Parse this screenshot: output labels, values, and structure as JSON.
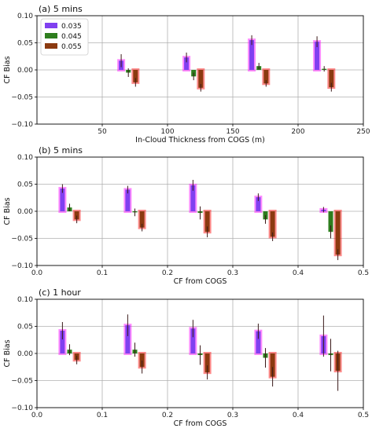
{
  "colors": {
    "low": "#8040f0",
    "mid": "#2e7d1e",
    "high": "#8b3a10",
    "fill_low": "#ff00ff",
    "fill_high": "#ff0000",
    "grid": "#b0b0b0"
  },
  "chart_data": [
    {
      "type": "bar",
      "title": "(a) 5 mins",
      "xlabel": "In-Cloud Thickness from COGS (m)",
      "ylabel": "CF Bias",
      "xlim": [
        0,
        250
      ],
      "ylim": [
        -0.1,
        0.1
      ],
      "xticks": [
        "50",
        "100",
        "150",
        "200",
        "250"
      ],
      "yticks": [
        "0.10",
        "0.05",
        "0.00",
        "−0.05",
        "−0.10"
      ],
      "grid": true,
      "legend": {
        "position": "top-left",
        "entries": [
          "0.035",
          "0.045",
          "0.055"
        ]
      },
      "x": [
        70,
        120,
        170,
        220
      ],
      "series": [
        {
          "name": "0.035",
          "values": [
            0.017,
            0.023,
            0.055,
            0.052
          ],
          "errors": [
            0.012,
            0.009,
            0.009,
            0.01
          ]
        },
        {
          "name": "0.045",
          "values": [
            -0.005,
            -0.012,
            0.007,
            0.002
          ],
          "errors": [
            0.008,
            0.007,
            0.006,
            0.005
          ]
        },
        {
          "name": "0.055",
          "values": [
            -0.023,
            -0.033,
            -0.025,
            -0.032
          ],
          "errors": [
            0.008,
            0.007,
            0.006,
            0.008
          ]
        }
      ]
    },
    {
      "type": "bar",
      "title": "(b) 5 mins",
      "xlabel": "CF from COGS",
      "ylabel": "CF Bias",
      "xlim": [
        0,
        0.5
      ],
      "ylim": [
        -0.1,
        0.1
      ],
      "xticks": [
        "0.0",
        "0.1",
        "0.2",
        "0.3",
        "0.4",
        "0.5"
      ],
      "yticks": [
        "0.10",
        "0.05",
        "0.00",
        "−0.05",
        "−0.10"
      ],
      "grid": true,
      "x": [
        0.05,
        0.15,
        0.25,
        0.35,
        0.45
      ],
      "series": [
        {
          "name": "0.035",
          "values": [
            0.042,
            0.04,
            0.048,
            0.026,
            0.003
          ],
          "errors": [
            0.008,
            0.007,
            0.01,
            0.007,
            0.005
          ]
        },
        {
          "name": "0.045",
          "values": [
            0.007,
            -0.002,
            -0.003,
            -0.015,
            -0.038
          ],
          "errors": [
            0.007,
            0.007,
            0.012,
            0.008,
            0.012
          ]
        },
        {
          "name": "0.055",
          "values": [
            -0.015,
            -0.03,
            -0.038,
            -0.047,
            -0.08
          ],
          "errors": [
            0.007,
            0.007,
            0.01,
            0.008,
            0.01
          ]
        }
      ]
    },
    {
      "type": "bar",
      "title": "(c) 1 hour",
      "xlabel": "CF from COGS",
      "ylabel": "CF Bias",
      "xlim": [
        0,
        0.5
      ],
      "ylim": [
        -0.1,
        0.1
      ],
      "xticks": [
        "0.0",
        "0.1",
        "0.2",
        "0.3",
        "0.4",
        "0.5"
      ],
      "yticks": [
        "0.10",
        "0.05",
        "0.00",
        "−0.05",
        "−0.10"
      ],
      "grid": true,
      "x": [
        0.05,
        0.15,
        0.25,
        0.35,
        0.45
      ],
      "series": [
        {
          "name": "0.035",
          "values": [
            0.042,
            0.052,
            0.046,
            0.041,
            0.032
          ],
          "errors": [
            0.016,
            0.02,
            0.016,
            0.014,
            0.038
          ]
        },
        {
          "name": "0.045",
          "values": [
            0.007,
            0.007,
            -0.003,
            -0.008,
            -0.003
          ],
          "errors": [
            0.01,
            0.013,
            0.018,
            0.018,
            0.03
          ]
        },
        {
          "name": "0.055",
          "values": [
            -0.012,
            -0.025,
            -0.035,
            -0.043,
            -0.032
          ],
          "errors": [
            0.008,
            0.012,
            0.013,
            0.018,
            0.037
          ]
        }
      ]
    }
  ]
}
